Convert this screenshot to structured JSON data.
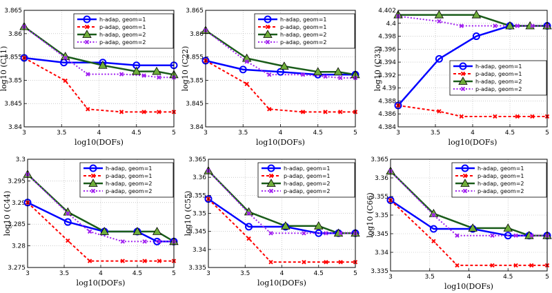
{
  "chart_data": [
    {
      "type": "line",
      "title": "",
      "xlabel": "log10(DOFs)",
      "ylabel": "log10 (C11)",
      "xlim": [
        3,
        5
      ],
      "ylim": [
        3.84,
        3.865
      ],
      "xticks": [
        "3",
        "3.5",
        "4",
        "4.5",
        "5"
      ],
      "yticks": [
        "3.84",
        "3.845",
        "3.85",
        "3.855",
        "3.86",
        "3.865"
      ],
      "legend_position": "top-right",
      "series": [
        {
          "name": "h-adap, geom=1",
          "color": "#0000ff",
          "marker": "circle",
          "style": "solid",
          "x": [
            3,
            3.53,
            4.05,
            4.5,
            5
          ],
          "y": [
            3.8548,
            3.8538,
            3.8538,
            3.8532,
            3.8532
          ]
        },
        {
          "name": "p-adap, geom=1",
          "color": "#ff0000",
          "marker": "x",
          "style": "dashed",
          "x": [
            3,
            3.55,
            3.85,
            4.3,
            4.6,
            4.8,
            5
          ],
          "y": [
            3.8548,
            3.8499,
            3.8438,
            3.8432,
            3.8432,
            3.8432,
            3.8432
          ]
        },
        {
          "name": "h-adap, geom=2",
          "color": "#1a5c1a",
          "marker": "triangle",
          "style": "solid",
          "x": [
            3,
            3.55,
            4.05,
            4.5,
            4.77,
            5
          ],
          "y": [
            3.8615,
            3.8551,
            3.8532,
            3.8519,
            3.8519,
            3.8512
          ]
        },
        {
          "name": "p-adap, geom=2",
          "color": "#a020f0",
          "marker": "x",
          "style": "dotted",
          "x": [
            3,
            3.55,
            3.85,
            4.3,
            4.6,
            4.8,
            5
          ],
          "y": [
            3.8615,
            3.8548,
            3.8513,
            3.8513,
            3.851,
            3.8506,
            3.8506
          ]
        }
      ]
    },
    {
      "type": "line",
      "title": "",
      "xlabel": "log10(DOFs)",
      "ylabel": "log10 (C22)",
      "xlim": [
        3,
        5
      ],
      "ylim": [
        3.84,
        3.865
      ],
      "xticks": [
        "3",
        "3.5",
        "4",
        "4.5",
        "5"
      ],
      "yticks": [
        "3.84",
        "3.845",
        "3.85",
        "3.855",
        "3.86",
        "3.865"
      ],
      "legend_position": "top-right",
      "series": [
        {
          "name": "h-adap, geom=1",
          "color": "#0000ff",
          "marker": "circle",
          "style": "solid",
          "x": [
            3,
            3.5,
            4.0,
            4.5,
            5
          ],
          "y": [
            3.8542,
            3.8523,
            3.8518,
            3.8512,
            3.8512
          ]
        },
        {
          "name": "p-adap, geom=1",
          "color": "#ff0000",
          "marker": "x",
          "style": "dashed",
          "x": [
            3,
            3.55,
            3.85,
            4.3,
            4.6,
            4.8,
            5
          ],
          "y": [
            3.8542,
            3.8492,
            3.8438,
            3.8432,
            3.8432,
            3.8432,
            3.8432
          ]
        },
        {
          "name": "h-adap, geom=2",
          "color": "#1a5c1a",
          "marker": "triangle",
          "style": "solid",
          "x": [
            3,
            3.55,
            4.05,
            4.5,
            4.77,
            5
          ],
          "y": [
            3.8607,
            3.8547,
            3.853,
            3.8518,
            3.8518,
            3.8512
          ]
        },
        {
          "name": "p-adap, geom=2",
          "color": "#a020f0",
          "marker": "x",
          "style": "dotted",
          "x": [
            3,
            3.55,
            3.85,
            4.3,
            4.6,
            4.8,
            5
          ],
          "y": [
            3.8607,
            3.854,
            3.8512,
            3.8512,
            3.8508,
            3.8505,
            3.8505
          ]
        }
      ]
    },
    {
      "type": "line",
      "title": "",
      "xlabel": "log10(DOFs)",
      "ylabel": "log10 (C33)",
      "xlim": [
        3,
        5
      ],
      "ylim": [
        4.384,
        4.402
      ],
      "xticks": [
        "3",
        "3.5",
        "4",
        "4.5",
        "5"
      ],
      "yticks": [
        "4.384",
        "4.386",
        "4.388",
        "4.39",
        "4.392",
        "4.394",
        "4.396",
        "4.398",
        "4.4",
        "4.402"
      ],
      "legend_position": "top-right",
      "series": [
        {
          "name": "h-adap, geom=1",
          "color": "#0000ff",
          "marker": "circle",
          "style": "solid",
          "x": [
            3,
            3.55,
            4.05,
            4.5,
            5
          ],
          "y": [
            4.3873,
            4.3945,
            4.398,
            4.3996,
            4.3996
          ]
        },
        {
          "name": "p-adap, geom=1",
          "color": "#ff0000",
          "marker": "x",
          "style": "dashed",
          "x": [
            3,
            3.55,
            3.85,
            4.3,
            4.6,
            4.8,
            5
          ],
          "y": [
            4.3873,
            4.3864,
            4.3856,
            4.3856,
            4.3856,
            4.3856,
            4.3856
          ]
        },
        {
          "name": "h-adap, geom=2",
          "color": "#1a5c1a",
          "marker": "triangle",
          "style": "solid",
          "x": [
            3,
            3.55,
            4.05,
            4.5,
            4.77,
            5
          ],
          "y": [
            4.4013,
            4.4013,
            4.4013,
            4.3996,
            4.3996,
            4.3996
          ]
        },
        {
          "name": "p-adap, geom=2",
          "color": "#a020f0",
          "marker": "x",
          "style": "dotted",
          "x": [
            3,
            3.55,
            3.85,
            4.3,
            4.6,
            4.8,
            5
          ],
          "y": [
            4.4011,
            4.4003,
            4.3996,
            4.3996,
            4.3996,
            4.3996,
            4.3996
          ]
        }
      ]
    },
    {
      "type": "line",
      "title": "",
      "xlabel": "log10(DOFs)",
      "ylabel": "log10 (C44)",
      "xlim": [
        3,
        5
      ],
      "ylim": [
        3.275,
        3.3
      ],
      "xticks": [
        "3",
        "3.5",
        "4",
        "4.5",
        "5"
      ],
      "yticks": [
        "3.275",
        "3.28",
        "3.285",
        "3.29",
        "3.295",
        "3.3"
      ],
      "legend_position": "top-right",
      "series": [
        {
          "name": "h-adap, geom=1",
          "color": "#0000ff",
          "marker": "circle",
          "style": "solid",
          "x": [
            3,
            3.55,
            4.05,
            4.5,
            4.77,
            5
          ],
          "y": [
            3.29,
            3.2855,
            3.2833,
            3.2833,
            3.281,
            3.281
          ]
        },
        {
          "name": "p-adap, geom=1",
          "color": "#ff0000",
          "marker": "x",
          "style": "dashed",
          "x": [
            3,
            3.55,
            3.85,
            4.3,
            4.6,
            4.8,
            5
          ],
          "y": [
            3.29,
            3.2812,
            3.2765,
            3.2765,
            3.2765,
            3.2765,
            3.2765
          ]
        },
        {
          "name": "h-adap, geom=2",
          "color": "#1a5c1a",
          "marker": "triangle",
          "style": "solid",
          "x": [
            3,
            3.55,
            4.05,
            4.5,
            4.77,
            5
          ],
          "y": [
            3.2965,
            3.2878,
            3.2833,
            3.2833,
            3.2833,
            3.281
          ]
        },
        {
          "name": "p-adap, geom=2",
          "color": "#a020f0",
          "marker": "x",
          "style": "dotted",
          "x": [
            3,
            3.55,
            3.85,
            4.3,
            4.6,
            4.8,
            5
          ],
          "y": [
            3.2965,
            3.2875,
            3.2833,
            3.281,
            3.281,
            3.281,
            3.281
          ]
        }
      ]
    },
    {
      "type": "line",
      "title": "",
      "xlabel": "log10(DOFs)",
      "ylabel": "log10 (C55)",
      "xlim": [
        3,
        5
      ],
      "ylim": [
        3.335,
        3.365
      ],
      "xticks": [
        "3",
        "3.5",
        "4",
        "4.5",
        "5"
      ],
      "yticks": [
        "3.335",
        "3.34",
        "3.345",
        "3.35",
        "3.355",
        "3.36",
        "3.365"
      ],
      "legend_position": "top-right",
      "series": [
        {
          "name": "h-adap, geom=1",
          "color": "#0000ff",
          "marker": "circle",
          "style": "solid",
          "x": [
            3,
            3.55,
            4.05,
            4.5,
            4.77,
            5
          ],
          "y": [
            3.354,
            3.3463,
            3.3463,
            3.3445,
            3.3445,
            3.3445
          ]
        },
        {
          "name": "p-adap, geom=1",
          "color": "#ff0000",
          "marker": "x",
          "style": "dashed",
          "x": [
            3,
            3.55,
            3.85,
            4.3,
            4.6,
            4.8,
            5
          ],
          "y": [
            3.354,
            3.343,
            3.3365,
            3.3365,
            3.3365,
            3.3365,
            3.3365
          ]
        },
        {
          "name": "h-adap, geom=2",
          "color": "#1a5c1a",
          "marker": "triangle",
          "style": "solid",
          "x": [
            3,
            3.55,
            4.05,
            4.5,
            4.77,
            5
          ],
          "y": [
            3.3618,
            3.3504,
            3.3465,
            3.3465,
            3.3445,
            3.3445
          ]
        },
        {
          "name": "p-adap, geom=2",
          "color": "#a020f0",
          "marker": "x",
          "style": "dotted",
          "x": [
            3,
            3.55,
            3.85,
            4.3,
            4.6,
            4.8,
            5
          ],
          "y": [
            3.3618,
            3.35,
            3.3445,
            3.3445,
            3.3445,
            3.3445,
            3.3445
          ]
        }
      ]
    },
    {
      "type": "line",
      "title": "",
      "xlabel": "log10(DOFs)",
      "ylabel": "log10 (C66)",
      "xlim": [
        3,
        5
      ],
      "ylim": [
        3.335,
        3.365
      ],
      "xticks": [
        "3",
        "3.5",
        "4",
        "4.5",
        "5"
      ],
      "yticks": [
        "3.335",
        "3.34",
        "3.345",
        "3.35",
        "3.355",
        "3.36",
        "3.365"
      ],
      "legend_position": "top-right",
      "series": [
        {
          "name": "h-adap, geom=1",
          "color": "#0000ff",
          "marker": "circle",
          "style": "solid",
          "x": [
            3,
            3.55,
            4.05,
            4.5,
            4.77,
            5
          ],
          "y": [
            3.354,
            3.3463,
            3.3463,
            3.3445,
            3.3445,
            3.3445
          ]
        },
        {
          "name": "p-adap, geom=1",
          "color": "#ff0000",
          "marker": "x",
          "style": "dashed",
          "x": [
            3,
            3.55,
            3.85,
            4.3,
            4.6,
            4.8,
            5
          ],
          "y": [
            3.354,
            3.343,
            3.3365,
            3.3365,
            3.3365,
            3.3365,
            3.3365
          ]
        },
        {
          "name": "h-adap, geom=2",
          "color": "#1a5c1a",
          "marker": "triangle",
          "style": "solid",
          "x": [
            3,
            3.55,
            4.05,
            4.5,
            4.77,
            5
          ],
          "y": [
            3.3618,
            3.3504,
            3.3465,
            3.3465,
            3.3445,
            3.3445
          ]
        },
        {
          "name": "p-adap, geom=2",
          "color": "#a020f0",
          "marker": "x",
          "style": "dotted",
          "x": [
            3,
            3.55,
            3.85,
            4.3,
            4.6,
            4.8,
            5
          ],
          "y": [
            3.3618,
            3.35,
            3.3445,
            3.3445,
            3.3445,
            3.3445,
            3.3445
          ]
        }
      ]
    }
  ]
}
